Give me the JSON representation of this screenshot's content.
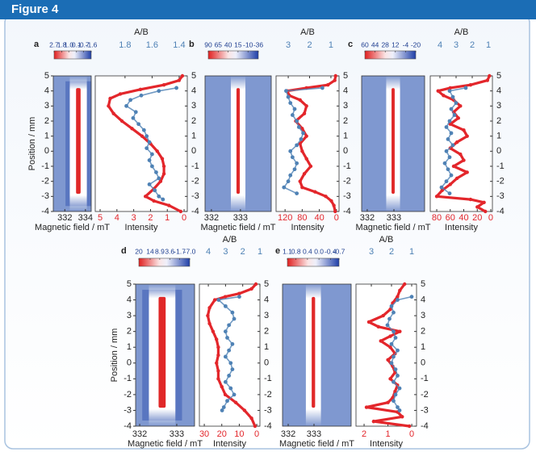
{
  "header": {
    "title": "Figure 4"
  },
  "chart_data": [
    {
      "type": "heatmap-profile",
      "label": "a",
      "colorbar": {
        "clim": [
          2.7,
          -1.6
        ],
        "ticks": [
          2.7,
          1.8,
          {
            "value": 1,
            "label": "1.0"
          },
          0.1,
          -0.7,
          -1.6
        ]
      },
      "heatmap": {
        "xlabel": "Magnetic field / mT",
        "xlim": [
          330.88,
          334.56
        ],
        "xticks": [
          332,
          334
        ],
        "ylabel": "Position / mm",
        "ylim": [
          -4,
          5
        ],
        "yticks": [
          5,
          4,
          3,
          2,
          1,
          0,
          -1,
          -2,
          -3,
          -4
        ]
      },
      "profile": {
        "title": "A/B",
        "xlabel": "Intensity",
        "xlim": [
          5.29,
          -0.19
        ],
        "xticks": [
          5,
          4,
          3,
          2,
          1,
          0
        ],
        "x2lim": [
          2.02,
          1.34
        ],
        "x2ticks": [
          1.8,
          1.6,
          1.4
        ],
        "ylim": [
          -4,
          5
        ],
        "yticks": [
          5,
          4,
          3,
          2,
          1,
          0,
          -1,
          -2,
          -3,
          -4
        ],
        "series": [
          {
            "color": "#e3262b",
            "axis": "x",
            "y": [
              5,
              4.7,
              4.4,
              4.1,
              3.8,
              3.5,
              3,
              2.5,
              2,
              1.5,
              1,
              0.5,
              0,
              -0.5,
              -1,
              -1.5,
              -2,
              -2.5,
              -3,
              -3.3,
              -3.6,
              -4
            ],
            "values": [
              0.1,
              0.3,
              1.2,
              2.6,
              3.8,
              4.4,
              4.5,
              4.2,
              3.7,
              3.1,
              2.5,
              2.0,
              1.6,
              1.3,
              1.2,
              1.2,
              1.4,
              1.8,
              2.3,
              1.8,
              0.9,
              0.2
            ]
          },
          {
            "color": "#4f82b5",
            "axis": "x2",
            "y": [
              4.2,
              4,
              3.7,
              3.4,
              3,
              2.6,
              2.2,
              1.8,
              1.4,
              1,
              0.6,
              0.2,
              -0.2,
              -0.6,
              -1,
              -1.4,
              -1.8,
              -2.2,
              -2.6,
              -3,
              -3.2
            ],
            "values": [
              1.42,
              1.55,
              1.68,
              1.76,
              1.79,
              1.72,
              1.74,
              1.7,
              1.66,
              1.64,
              1.62,
              1.64,
              1.6,
              1.62,
              1.6,
              1.57,
              1.55,
              1.62,
              1.58,
              1.55,
              1.52
            ]
          }
        ]
      }
    },
    {
      "type": "heatmap-profile",
      "label": "b",
      "colorbar": {
        "clim": [
          90,
          -36
        ],
        "ticks": [
          90,
          65,
          40,
          15,
          -10,
          -36
        ]
      },
      "heatmap": {
        "xlabel": "Magnetic field / mT",
        "xlim": [
          331.78,
          334.06
        ],
        "xticks": [
          332,
          333
        ],
        "ylim": [
          -4,
          5
        ]
      },
      "profile": {
        "title": "A/B",
        "xlabel": "Intensity",
        "xlim": [
          141,
          -6
        ],
        "xticks": [
          120,
          80,
          40,
          0
        ],
        "x2lim": [
          3.57,
          0.62
        ],
        "x2ticks": [
          3,
          2,
          1
        ],
        "ylim": [
          -4,
          5
        ],
        "yticks": [
          5,
          4,
          3,
          2,
          1,
          0,
          -1,
          -2,
          -3,
          -4
        ],
        "series": [
          {
            "color": "#e3262b",
            "axis": "x",
            "y": [
              5,
              4.7,
              4.4,
              4.2,
              4,
              3.7,
              3.4,
              3,
              2.5,
              2,
              1.5,
              1,
              0.5,
              0,
              -0.5,
              -1,
              -1.5,
              -2,
              -2.4,
              -2.7,
              -3,
              -3.3,
              -3.6,
              -4
            ],
            "values": [
              2,
              4,
              20,
              70,
              115,
              110,
              85,
              70,
              75,
              95,
              80,
              70,
              85,
              80,
              70,
              60,
              75,
              85,
              80,
              50,
              25,
              12,
              6,
              3
            ]
          },
          {
            "color": "#4f82b5",
            "axis": "x2",
            "y": [
              4.2,
              4,
              3.6,
              3.2,
              2.8,
              2.4,
              2,
              1.6,
              1.2,
              0.8,
              0.4,
              0,
              -0.4,
              -0.8,
              -1.2,
              -1.6,
              -2,
              -2.4,
              -2.8
            ],
            "values": [
              1.4,
              3.1,
              3.0,
              2.9,
              2.7,
              2.8,
              2.6,
              2.5,
              2.3,
              2.4,
              2.6,
              2.9,
              2.8,
              2.6,
              2.7,
              2.9,
              3.0,
              3.2,
              2.6
            ]
          }
        ]
      }
    },
    {
      "type": "heatmap-profile",
      "label": "c",
      "colorbar": {
        "clim": [
          60,
          -20
        ],
        "ticks": [
          60,
          44,
          28,
          12,
          -4,
          -20
        ]
      },
      "heatmap": {
        "xlabel": "Magnetic field / mT",
        "xlim": [
          331.79,
          334.15
        ],
        "xticks": [
          332,
          333
        ],
        "ylim": [
          -4,
          5
        ]
      },
      "profile": {
        "title": "A/B",
        "xlabel": "Intensity",
        "xlim": [
          89.6,
          -2.4
        ],
        "xticks": [
          80,
          60,
          40,
          20,
          0
        ],
        "x2lim": [
          4.6,
          0.75
        ],
        "x2ticks": [
          4,
          3,
          2,
          1
        ],
        "ylim": [
          -4,
          5
        ],
        "yticks": [
          5,
          4,
          3,
          2,
          1,
          0,
          -1,
          -2,
          -3,
          -4
        ],
        "series": [
          {
            "color": "#e3262b",
            "axis": "x",
            "y": [
              5,
              4.7,
              4.4,
              4.2,
              4,
              3.7,
              3.4,
              3,
              2.6,
              2.2,
              1.8,
              1.4,
              1,
              0.6,
              0.2,
              -0.2,
              -0.6,
              -1,
              -1.4,
              -1.8,
              -2.2,
              -2.6,
              -3,
              -3.2,
              -3.4,
              -3.7,
              -4
            ],
            "values": [
              2,
              5,
              30,
              60,
              78,
              70,
              55,
              45,
              55,
              48,
              60,
              40,
              35,
              50,
              60,
              45,
              40,
              55,
              35,
              50,
              60,
              72,
              80,
              30,
              10,
              20,
              8
            ]
          },
          {
            "color": "#4f82b5",
            "axis": "x2",
            "y": [
              4.2,
              4,
              3.6,
              3.2,
              2.8,
              2.4,
              2,
              1.6,
              1.2,
              0.8,
              0.4,
              0,
              -0.4,
              -0.8,
              -1.2,
              -1.6,
              -2,
              -2.4,
              -2.8
            ],
            "values": [
              2.4,
              3.4,
              3.2,
              3.0,
              3.3,
              3.1,
              3.4,
              3.6,
              3.3,
              3.5,
              3.2,
              3.6,
              3.4,
              3.7,
              3.5,
              3.3,
              3.6,
              3.9,
              3.4
            ]
          }
        ]
      }
    },
    {
      "type": "heatmap-profile",
      "label": "d",
      "colorbar": {
        "clim": [
          20,
          -7
        ],
        "ticks": [
          20,
          14,
          8.9,
          3.6,
          -1.7,
          {
            "value": -7,
            "label": "-7.0"
          }
        ]
      },
      "heatmap": {
        "xlabel": "Magnetic field / mT",
        "xlim": [
          331.89,
          333.48
        ],
        "xticks": [
          332,
          333
        ],
        "ylabel": "Position / mm",
        "ylim": [
          -4,
          5
        ],
        "yticks": [
          5,
          4,
          3,
          2,
          1,
          0,
          -1,
          -2,
          -3,
          -4
        ]
      },
      "profile": {
        "title": "A/B",
        "xlabel": "Intensity",
        "xlim": [
          32.8,
          -1.8
        ],
        "xticks": [
          30,
          20,
          10,
          0
        ],
        "x2lim": [
          4.52,
          1.0
        ],
        "x2ticks": [
          4,
          3,
          2,
          1
        ],
        "ylim": [
          -4,
          5
        ],
        "yticks": [
          5,
          4,
          3,
          2,
          1,
          0,
          -1,
          -2,
          -3,
          -4
        ],
        "series": [
          {
            "color": "#e3262b",
            "axis": "x",
            "y": [
              5,
              4.7,
              4.4,
              4.2,
              4,
              3.5,
              3,
              2.5,
              2,
              1.5,
              1,
              0.5,
              0,
              -0.5,
              -1,
              -1.5,
              -2,
              -2.5,
              -3,
              -3.5,
              -4
            ],
            "values": [
              0.5,
              3,
              10,
              18,
              24,
              27,
              28,
              27,
              25,
              23,
              22,
              22,
              23,
              22,
              22,
              20,
              18,
              12,
              7,
              3,
              1
            ]
          },
          {
            "color": "#4f82b5",
            "axis": "x2",
            "y": [
              4.2,
              4,
              3.6,
              3.2,
              2.8,
              2.4,
              2,
              1.6,
              1.2,
              0.8,
              0.4,
              0,
              -0.4,
              -0.8,
              -1.2,
              -1.6,
              -2,
              -2.4,
              -2.8,
              -3
            ],
            "values": [
              2.2,
              3.4,
              3.0,
              2.6,
              2.5,
              2.8,
              3.0,
              2.9,
              2.6,
              2.8,
              3.0,
              2.7,
              2.6,
              2.8,
              3.0,
              2.7,
              2.5,
              2.9,
              3.1,
              3.2
            ]
          }
        ]
      }
    },
    {
      "type": "heatmap-profile",
      "label": "e",
      "colorbar": {
        "clim": [
          1.1,
          -0.7
        ],
        "ticks": [
          1.1,
          0.8,
          0.4,
          {
            "value": 0,
            "label": "0.0"
          },
          -0.4,
          -0.7
        ]
      },
      "heatmap": {
        "xlabel": "Magnetic field / mT",
        "xlim": [
          331.78,
          334.44
        ],
        "xticks": [
          332,
          333
        ],
        "ylim": [
          -4,
          5
        ]
      },
      "profile": {
        "title": "A/B",
        "xlabel": "Intensity",
        "xlim": [
          2.34,
          -0.2
        ],
        "xticks": [
          2,
          1,
          0
        ],
        "x2lim": [
          3.76,
          0.76
        ],
        "x2ticks": [
          3,
          2,
          1
        ],
        "ylim": [
          -4,
          5
        ],
        "yticks": [
          5,
          4,
          3,
          2,
          1,
          0,
          -1,
          -2,
          -3,
          -4
        ],
        "series": [
          {
            "color": "#e3262b",
            "axis": "x",
            "y": [
              5,
              4.6,
              4.2,
              3.8,
              3.4,
              3,
              2.6,
              2.3,
              2,
              1.7,
              1.4,
              1,
              0.6,
              0.2,
              -0.2,
              -0.6,
              -1,
              -1.4,
              -1.8,
              -2.2,
              -2.5,
              -2.8,
              -3.1,
              -3.4,
              -3.7,
              -4
            ],
            "values": [
              0.3,
              0.5,
              0.6,
              0.8,
              0.9,
              1.2,
              1.8,
              1.4,
              0.5,
              0.9,
              1.3,
              0.9,
              0.7,
              1.0,
              0.8,
              0.7,
              0.9,
              0.6,
              0.7,
              0.8,
              1.0,
              1.9,
              0.6,
              0.4,
              1.6,
              0.1
            ]
          },
          {
            "color": "#4f82b5",
            "axis": "x2",
            "y": [
              4.2,
              4,
              3.6,
              3.2,
              2.8,
              2.4,
              2,
              1.6,
              1.2,
              0.8,
              0.4,
              0,
              -0.4,
              -0.8,
              -1.2,
              -1.6,
              -2,
              -2.4,
              -2.8,
              -3
            ],
            "values": [
              1.0,
              1.7,
              2.0,
              1.9,
              2.1,
              2.2,
              1.9,
              1.8,
              2.0,
              1.7,
              1.9,
              2.0,
              1.8,
              1.7,
              1.9,
              1.6,
              1.8,
              1.9,
              1.7,
              1.6
            ]
          }
        ]
      }
    }
  ]
}
